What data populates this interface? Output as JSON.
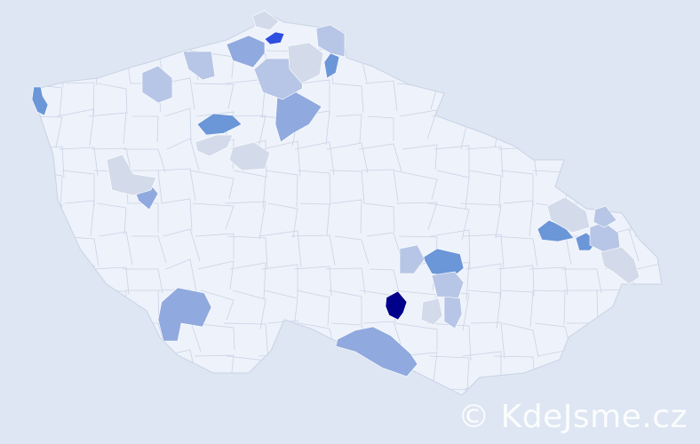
{
  "map": {
    "base_fill": "#eef2fa",
    "border_color": "#c9d3e6",
    "background": "#dde6f2",
    "highlight_colors": {
      "darkest": "#00008b",
      "strong": "#2f4fe0",
      "medium": "#6b96d8",
      "mid_light": "#90a9de",
      "light": "#b7c6e6",
      "lightest": "#d3dbea"
    }
  },
  "watermark": {
    "text": "© KdeJsme.cz"
  }
}
